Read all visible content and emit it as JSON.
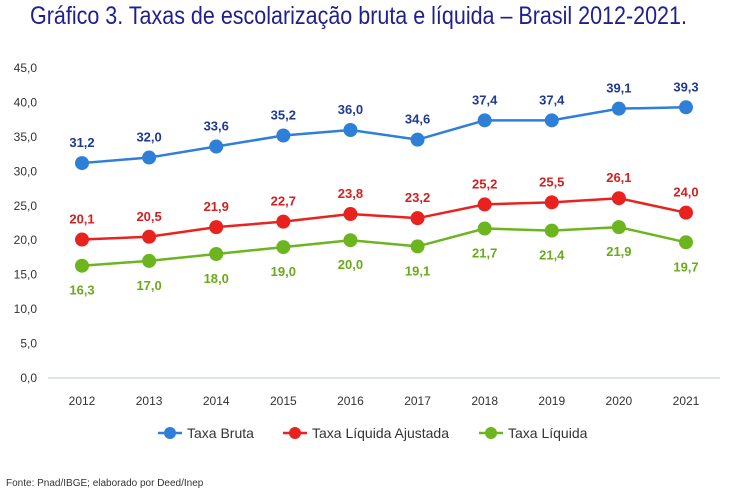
{
  "title": "Gráfico 3. Taxas de escolarização bruta e líquida – Brasil 2012-2021.",
  "source": "Fonte: Pnad/IBGE; elaborado por Deed/Inep",
  "chart_data": {
    "type": "line",
    "x": [
      "2012",
      "2013",
      "2014",
      "2015",
      "2016",
      "2017",
      "2018",
      "2019",
      "2020",
      "2021"
    ],
    "ylim": [
      0,
      45
    ],
    "yticks": [
      "0,0",
      "5,0",
      "10,0",
      "15,0",
      "20,0",
      "25,0",
      "30,0",
      "35,0",
      "40,0",
      "45,0"
    ],
    "grid": false,
    "legend_position": "bottom",
    "series": [
      {
        "name": "Taxa Bruta",
        "color": "#2e7fd8",
        "label_color": "#1f3a93",
        "values": [
          31.2,
          32.0,
          33.6,
          35.2,
          36.0,
          34.6,
          37.4,
          37.4,
          39.1,
          39.3
        ],
        "labels": [
          "31,2",
          "32,0",
          "33,6",
          "35,2",
          "36,0",
          "34,6",
          "37,4",
          "37,4",
          "39,1",
          "39,3"
        ],
        "label_position": "above"
      },
      {
        "name": "Taxa Líquida Ajustada",
        "color": "#e8231f",
        "label_color": "#d42020",
        "values": [
          20.1,
          20.5,
          21.9,
          22.7,
          23.8,
          23.2,
          25.2,
          25.5,
          26.1,
          24.0
        ],
        "labels": [
          "20,1",
          "20,5",
          "21,9",
          "22,7",
          "23,8",
          "23,2",
          "25,2",
          "25,5",
          "26,1",
          "24,0"
        ],
        "label_position": "above"
      },
      {
        "name": "Taxa Líquida",
        "color": "#6cb51f",
        "label_color": "#6aaa1a",
        "values": [
          16.3,
          17.0,
          18.0,
          19.0,
          20.0,
          19.1,
          21.7,
          21.4,
          21.9,
          19.7
        ],
        "labels": [
          "16,3",
          "17,0",
          "18,0",
          "19,0",
          "20,0",
          "19,1",
          "21,7",
          "21,4",
          "21,9",
          "19,7"
        ],
        "label_position": "below"
      }
    ]
  }
}
